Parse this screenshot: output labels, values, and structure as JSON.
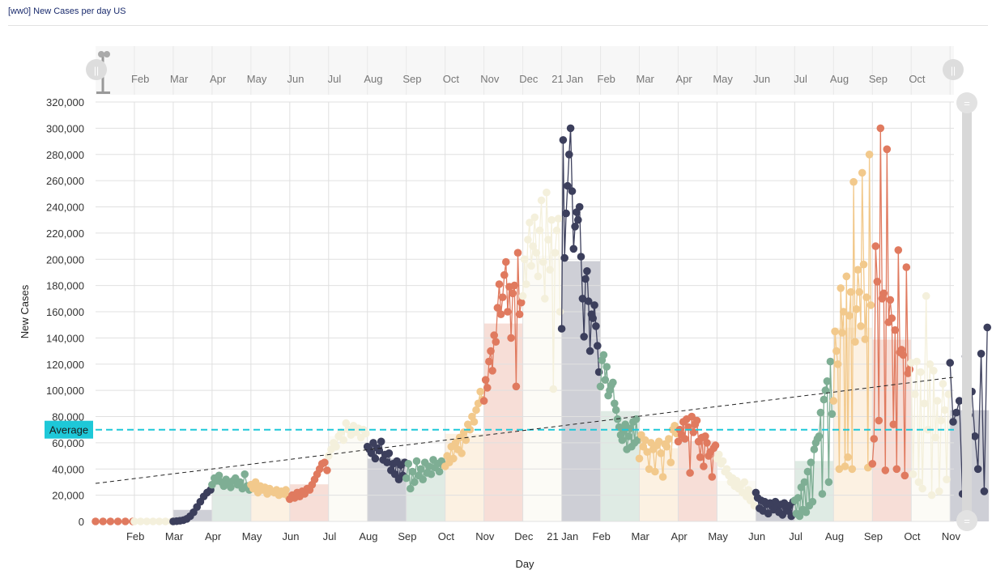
{
  "title": "[ww0] New Cases per day US",
  "colors": {
    "palette": [
      "#3c3f5c",
      "#7eae94",
      "#f2c98c",
      "#e07a5f",
      "#f4f0dc"
    ],
    "grid": "#e0e0e0",
    "average": "#1ec8d8",
    "trend": "#222222",
    "navigator_bg": "#f7f7f7",
    "scrollbar": "#d8d8d8"
  },
  "chart_data": {
    "type": "line",
    "title": "[ww0] New Cases per day US",
    "xlabel": "Day",
    "ylabel": "New Cases",
    "ylim": [
      0,
      320000
    ],
    "yticks": [
      0,
      20000,
      40000,
      60000,
      80000,
      100000,
      120000,
      140000,
      160000,
      180000,
      200000,
      220000,
      240000,
      260000,
      280000,
      300000,
      320000
    ],
    "ytick_labels": [
      "0",
      "20,000",
      "40,000",
      "60,000",
      "80,000",
      "100,000",
      "120,000",
      "140,000",
      "160,000",
      "180,000",
      "200,000",
      "220,000",
      "240,000",
      "260,000",
      "280,000",
      "300,000",
      "320,000"
    ],
    "xlim_months": [
      0,
      22.1
    ],
    "x_unit": "months since Jan 2020",
    "xtick_labels": [
      "Feb",
      "Mar",
      "Apr",
      "May",
      "Jun",
      "Jul",
      "Aug",
      "Sep",
      "Oct",
      "Nov",
      "Dec",
      "21 Jan",
      "Feb",
      "Mar",
      "Apr",
      "May",
      "Jun",
      "Jul",
      "Aug",
      "Sep",
      "Oct",
      "Nov"
    ],
    "xtick_positions": [
      1.15,
      2.15,
      3.15,
      4.15,
      5.15,
      6.15,
      7.15,
      8.15,
      9.15,
      10.15,
      11.15,
      12.15,
      13.15,
      14.15,
      15.15,
      16.15,
      17.15,
      18.15,
      19.15,
      20.15,
      21.15,
      22.15
    ],
    "navigator_labels": [
      "Feb",
      "Mar",
      "Apr",
      "May",
      "Jun",
      "Jul",
      "Aug",
      "Sep",
      "Oct",
      "Nov",
      "Dec",
      "21 Jan",
      "Feb",
      "Mar",
      "Apr",
      "May",
      "Jun",
      "Jul",
      "Aug",
      "Sep",
      "Oct"
    ],
    "grid": true,
    "average": {
      "label": "Average",
      "value": 70000
    },
    "trend": {
      "start": [
        0,
        29000
      ],
      "end": [
        22.1,
        110000
      ]
    },
    "monthly_segments": [
      {
        "month": "Jan 2020",
        "start": 0,
        "color_index": 3,
        "values": [
          0,
          0,
          0,
          0,
          0,
          0
        ]
      },
      {
        "month": "Feb 2020",
        "start": 1,
        "color_index": 4,
        "values": [
          0,
          0,
          0,
          0,
          0,
          0,
          0
        ]
      },
      {
        "month": "Mar 2020",
        "start": 2,
        "color_index": 0,
        "values": [
          0,
          200,
          500,
          1000,
          2000,
          4000,
          7000,
          11000,
          15000,
          19000,
          22000,
          24000
        ]
      },
      {
        "month": "Apr 2020",
        "start": 3,
        "color_index": 1,
        "values": [
          28000,
          33000,
          31000,
          35000,
          30000,
          27000,
          32000,
          29000,
          26000,
          31000,
          33000,
          28000,
          30000,
          25000,
          36000,
          27000,
          24000
        ]
      },
      {
        "month": "May 2020",
        "start": 4,
        "color_index": 2,
        "values": [
          28000,
          25000,
          30000,
          22000,
          27000,
          24000,
          26000,
          21000,
          25000,
          23000,
          22000,
          24000,
          20000,
          23000,
          21000,
          24000,
          19000
        ]
      },
      {
        "month": "Jun 2020",
        "start": 5,
        "color_index": 3,
        "values": [
          17000,
          20000,
          18000,
          22000,
          19000,
          23000,
          21000,
          25000,
          24000,
          28000,
          32000,
          36000,
          40000,
          44000,
          45000,
          39000
        ]
      },
      {
        "month": "Jul 2020",
        "start": 6,
        "color_index": 4,
        "values": [
          50000,
          55000,
          60000,
          57000,
          65000,
          68000,
          62000,
          75000,
          70000,
          66000,
          73000,
          68000,
          71000,
          64000,
          70000,
          67000
        ]
      },
      {
        "month": "Aug 2020",
        "start": 7,
        "color_index": 0,
        "values": [
          57000,
          55000,
          52000,
          60000,
          48000,
          56000,
          54000,
          61000,
          47000,
          51000,
          45000,
          52000,
          39000,
          44000,
          36000,
          46000,
          32000,
          43000,
          35000,
          45000
        ]
      },
      {
        "month": "Sep 2020",
        "start": 8,
        "color_index": 1,
        "values": [
          33000,
          44000,
          25000,
          38000,
          30000,
          46000,
          35000,
          40000,
          32000,
          45000,
          37000,
          42000,
          36000,
          47000,
          41000,
          44000,
          38000,
          46000,
          43000
        ]
      },
      {
        "month": "Oct 2020",
        "start": 9,
        "color_index": 2,
        "values": [
          42000,
          50000,
          45000,
          57000,
          48000,
          60000,
          55000,
          64000,
          52000,
          68000,
          62000,
          74000,
          70000,
          80000,
          76000,
          85000,
          90000,
          99000,
          93000
        ]
      },
      {
        "month": "Nov 2020",
        "start": 10,
        "color_index": 3,
        "values": [
          92000,
          108000,
          102000,
          122000,
          130000,
          115000,
          142000,
          137000,
          163000,
          181000,
          158000,
          171000,
          188000,
          198000,
          160000,
          179000,
          140000,
          174000,
          180000,
          103000,
          205000,
          158000,
          167000
        ]
      },
      {
        "month": "Dec 2020",
        "start": 11,
        "color_index": 4,
        "values": [
          172000,
          200000,
          181000,
          215000,
          228000,
          195000,
          210000,
          232000,
          205000,
          187000,
          222000,
          245000,
          198000,
          170000,
          251000,
          215000,
          192000,
          230000,
          101000,
          205000,
          222000,
          231000,
          160000
        ]
      },
      {
        "month": "Jan 2021",
        "start": 12,
        "color_index": 0,
        "values": [
          147000,
          291000,
          201000,
          235000,
          256000,
          280000,
          300000,
          252000,
          208000,
          225000,
          236000,
          230000,
          240000,
          202000,
          170000,
          141000,
          185000,
          191000,
          168000,
          130000,
          158000,
          155000,
          165000,
          149000,
          134000,
          114000
        ]
      },
      {
        "month": "Feb 2021",
        "start": 13,
        "color_index": 1,
        "values": [
          103000,
          123000,
          127000,
          108000,
          118000,
          96000,
          100000,
          104000,
          106000,
          90000,
          85000,
          78000,
          72000,
          66000,
          62000,
          69000,
          74000,
          55000,
          65000,
          71000,
          57000,
          76000,
          60000,
          78000,
          62000
        ]
      },
      {
        "month": "Mar 2021",
        "start": 14,
        "color_index": 2,
        "values": [
          48000,
          66000,
          57000,
          62000,
          53000,
          40000,
          60000,
          55000,
          38000,
          58000,
          61000,
          52000,
          34000,
          59000,
          57000,
          63000,
          45000,
          70000,
          73000,
          67000
        ]
      },
      {
        "month": "Apr 2021",
        "start": 15,
        "color_index": 3,
        "values": [
          61000,
          70000,
          66000,
          76000,
          63000,
          78000,
          72000,
          37000,
          80000,
          68000,
          74000,
          77000,
          61000,
          49000,
          64000,
          42000,
          65000,
          60000,
          50000,
          53000,
          34000,
          56000,
          58000
        ]
      },
      {
        "month": "May 2021",
        "start": 16,
        "color_index": 4,
        "values": [
          48000,
          51000,
          44000,
          46000,
          38000,
          40000,
          35000,
          30000,
          33000,
          27000,
          31000,
          25000,
          28000,
          22000,
          30000,
          19000,
          24000,
          16000,
          20000,
          12000
        ]
      },
      {
        "month": "Jun 2021",
        "start": 17,
        "color_index": 0,
        "values": [
          22000,
          18000,
          10000,
          16000,
          8000,
          15000,
          13000,
          6000,
          14000,
          12000,
          9000,
          15000,
          11000,
          7000,
          13000,
          5000,
          14000,
          10000,
          8000,
          12000,
          4000,
          15000
        ]
      },
      {
        "month": "Jul 2021",
        "start": 18,
        "color_index": 1,
        "values": [
          16000,
          6000,
          18000,
          4000,
          26000,
          9000,
          30000,
          7000,
          38000,
          12000,
          45000,
          15000,
          55000,
          60000,
          63000,
          65000,
          83000,
          21000,
          93000,
          100000,
          107000,
          30000,
          122000,
          82000
        ]
      },
      {
        "month": "Aug 2021",
        "start": 19,
        "color_index": 2,
        "values": [
          92000,
          145000,
          130000,
          120000,
          40000,
          178000,
          144000,
          160000,
          42000,
          187000,
          49000,
          157000,
          175000,
          40000,
          259000,
          137000,
          162000,
          192000,
          175000,
          149000,
          266000,
          196000,
          139000,
          171000,
          41000,
          280000,
          165000
        ]
      },
      {
        "month": "Sep 2021",
        "start": 20,
        "color_index": 3,
        "values": [
          44000,
          63000,
          210000,
          183000,
          77000,
          300000,
          170000,
          174000,
          39000,
          284000,
          152000,
          169000,
          155000,
          74000,
          146000,
          40000,
          207000,
          129000,
          131000,
          127000,
          35000,
          194000,
          113000,
          116000
        ]
      },
      {
        "month": "Oct 2021",
        "start": 21,
        "color_index": 4,
        "values": [
          121000,
          36000,
          97000,
          122000,
          30000,
          114000,
          25000,
          90000,
          172000,
          70000,
          120000,
          20000,
          115000,
          64000,
          92000,
          23000,
          77000,
          105000,
          85000,
          32000,
          97000
        ]
      },
      {
        "month": "Nov 2021",
        "start": 22,
        "color_index": 0,
        "values": [
          121000,
          76000,
          83000,
          92000,
          21000,
          126000,
          81000,
          99000,
          65000,
          40000,
          128000,
          23000,
          148000
        ]
      }
    ]
  }
}
